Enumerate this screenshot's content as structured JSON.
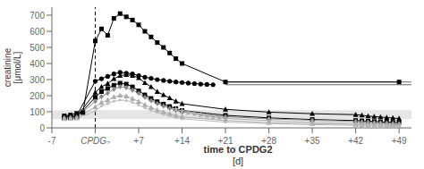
{
  "chart_data": {
    "type": "line",
    "ylabel": "creatinine\n[μmol/L]",
    "xlabel": "time to CPDG2\n[d]",
    "xlim": [
      -7,
      51
    ],
    "ylim": [
      0,
      750
    ],
    "xticks": [
      -7,
      {
        "value": 0,
        "label": "CPDG₂"
      },
      {
        "value": 7,
        "label": "+7"
      },
      {
        "value": 14,
        "label": "+14"
      },
      {
        "value": 21,
        "label": "+21"
      },
      {
        "value": 28,
        "label": "+28"
      },
      {
        "value": 35,
        "label": "+35"
      },
      {
        "value": 42,
        "label": "+42"
      },
      {
        "value": 49,
        "label": "+49"
      }
    ],
    "yticks": [
      0,
      100,
      200,
      300,
      400,
      500,
      600,
      700
    ],
    "grid": false,
    "background_color": "#ffffff",
    "normal_range": {
      "low": 55,
      "high": 110,
      "color": "#cccccc"
    },
    "vline": {
      "x": 0,
      "color": "black",
      "line_style": "dashed"
    },
    "hlines": [
      {
        "y": 285,
        "x": [
          21,
          51
        ],
        "color": "#666666"
      },
      {
        "y": 268,
        "x": [
          21,
          51
        ],
        "color": "#666666"
      }
    ],
    "series": [
      {
        "color": "black",
        "marker": "square",
        "x": [
          -5,
          -4,
          -3,
          -2,
          0,
          1,
          2,
          3,
          4,
          5,
          6,
          7,
          8,
          9,
          10,
          11,
          12,
          13,
          14,
          21,
          49
        ],
        "values": [
          75,
          80,
          90,
          95,
          540,
          615,
          575,
          680,
          710,
          690,
          670,
          640,
          600,
          565,
          530,
          500,
          465,
          430,
          400,
          285,
          285
        ]
      },
      {
        "color": "black",
        "marker": "circle",
        "x": [
          -5,
          -4,
          -3,
          0,
          1,
          2,
          3,
          4,
          5,
          6,
          7,
          8,
          9,
          10,
          11,
          12,
          13,
          14,
          15,
          16,
          17,
          18,
          19
        ],
        "values": [
          70,
          72,
          75,
          290,
          305,
          320,
          335,
          345,
          340,
          335,
          325,
          315,
          308,
          300,
          295,
          290,
          285,
          282,
          278,
          275,
          272,
          270,
          268
        ]
      },
      {
        "color": "black",
        "marker": "triangle",
        "x": [
          -5,
          -4,
          -3,
          0,
          1,
          2,
          3,
          4,
          5,
          6,
          7,
          8,
          9,
          10,
          11,
          12,
          13,
          14,
          21,
          28,
          35,
          42,
          43,
          44,
          45,
          46,
          47,
          48,
          49
        ],
        "values": [
          65,
          68,
          70,
          220,
          255,
          275,
          305,
          325,
          330,
          325,
          310,
          280,
          255,
          225,
          205,
          185,
          165,
          150,
          115,
          98,
          88,
          82,
          78,
          73,
          70,
          67,
          64,
          61,
          58
        ]
      },
      {
        "color": "black",
        "marker": "square",
        "x": [
          -5,
          -4,
          -3,
          0,
          1,
          2,
          3,
          4,
          5,
          6,
          7,
          8,
          9,
          10,
          11,
          12,
          13,
          14,
          21,
          28,
          35,
          42,
          43,
          44,
          45,
          46,
          47,
          48,
          49
        ],
        "values": [
          60,
          62,
          65,
          190,
          225,
          245,
          265,
          278,
          272,
          255,
          230,
          205,
          183,
          163,
          148,
          133,
          120,
          108,
          78,
          62,
          52,
          46,
          44,
          42,
          40,
          38,
          36,
          34,
          33
        ]
      },
      {
        "color": "#888888",
        "marker": "diamond",
        "x": [
          -5,
          -4,
          -3,
          0,
          1,
          2,
          3,
          4,
          5,
          6,
          7,
          8,
          9,
          10,
          11,
          12,
          13,
          14,
          21,
          28,
          35,
          42,
          43,
          44,
          45,
          46,
          47,
          48,
          49
        ],
        "values": [
          62,
          64,
          67,
          165,
          195,
          215,
          240,
          255,
          250,
          235,
          215,
          190,
          170,
          152,
          136,
          122,
          110,
          98,
          70,
          56,
          47,
          40,
          38,
          36,
          34,
          32,
          30,
          28,
          27
        ]
      },
      {
        "color": "#aaaaaa",
        "marker": "star",
        "x": [
          13,
          14,
          15,
          16,
          17,
          18,
          19,
          20,
          21,
          28,
          35,
          42,
          43,
          44,
          45,
          46,
          47,
          48,
          49
        ],
        "values": [
          115,
          105,
          95,
          88,
          80,
          74,
          68,
          63,
          58,
          45,
          35,
          28,
          26,
          24,
          23,
          22,
          21,
          20,
          19
        ]
      },
      {
        "color": "#aaaaaa",
        "marker": "triangle",
        "x": [
          -5,
          -4,
          -3,
          0,
          1,
          2,
          3,
          4,
          5,
          6,
          7,
          8,
          9,
          10,
          11,
          12,
          13,
          14,
          21,
          28,
          35,
          42,
          43,
          44,
          45,
          46,
          47,
          48,
          49
        ],
        "values": [
          57,
          59,
          61,
          130,
          158,
          172,
          192,
          202,
          197,
          182,
          163,
          143,
          126,
          111,
          98,
          87,
          77,
          68,
          46,
          33,
          26,
          20,
          18,
          17,
          16,
          15,
          14,
          13,
          12
        ]
      },
      {
        "color": "#bbbbbb",
        "marker": "point",
        "x": [
          -5,
          -4,
          -3,
          0,
          1,
          2,
          3,
          4,
          5,
          6,
          7,
          8,
          9,
          10,
          11,
          12,
          13,
          14,
          21,
          28,
          35,
          42,
          43,
          44,
          45,
          46,
          47,
          48,
          49
        ],
        "values": [
          53,
          55,
          57,
          105,
          135,
          150,
          165,
          173,
          170,
          158,
          142,
          125,
          110,
          96,
          84,
          73,
          64,
          56,
          36,
          26,
          20,
          16,
          15,
          14,
          13,
          12,
          11,
          10,
          10
        ]
      }
    ]
  }
}
